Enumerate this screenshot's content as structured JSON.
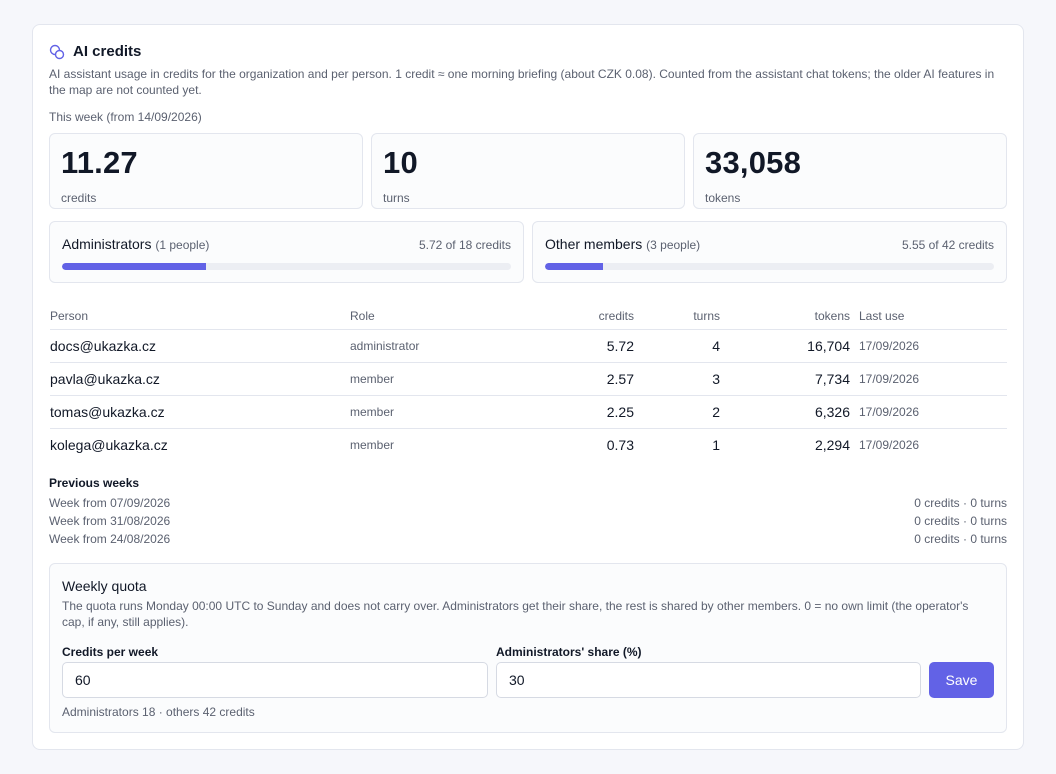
{
  "header": {
    "icon": "coins-icon",
    "title": "AI credits",
    "description": "AI assistant usage in credits for the organization and per person. 1 credit ≈ one morning briefing (about CZK 0.08). Counted from the assistant chat tokens; the older AI features in the map are not counted yet."
  },
  "this_week": {
    "label": "This week (from 14/09/2026)"
  },
  "stats": [
    {
      "value": "11.27",
      "label": "credits"
    },
    {
      "value": "10",
      "label": "turns"
    },
    {
      "value": "33,058",
      "label": "tokens"
    }
  ],
  "groups": [
    {
      "name": "Administrators",
      "count": "(1 people)",
      "usage": "5.72 of 18 credits",
      "fill_percent": 32
    },
    {
      "name": "Other members",
      "count": "(3 people)",
      "usage": "5.55 of 42 credits",
      "fill_percent": 13
    }
  ],
  "table": {
    "columns": {
      "person": "Person",
      "role": "Role",
      "credits": "credits",
      "turns": "turns",
      "tokens": "tokens",
      "last_use": "Last use"
    },
    "rows": [
      {
        "person": "docs@ukazka.cz",
        "role": "administrator",
        "credits": "5.72",
        "turns": "4",
        "tokens": "16,704",
        "last_use": "17/09/2026"
      },
      {
        "person": "pavla@ukazka.cz",
        "role": "member",
        "credits": "2.57",
        "turns": "3",
        "tokens": "7,734",
        "last_use": "17/09/2026"
      },
      {
        "person": "tomas@ukazka.cz",
        "role": "member",
        "credits": "2.25",
        "turns": "2",
        "tokens": "6,326",
        "last_use": "17/09/2026"
      },
      {
        "person": "kolega@ukazka.cz",
        "role": "member",
        "credits": "0.73",
        "turns": "1",
        "tokens": "2,294",
        "last_use": "17/09/2026"
      }
    ]
  },
  "previous_weeks": {
    "title": "Previous weeks",
    "items": [
      {
        "week": "Week from 07/09/2026",
        "summary": "0 credits · 0 turns"
      },
      {
        "week": "Week from 31/08/2026",
        "summary": "0 credits · 0 turns"
      },
      {
        "week": "Week from 24/08/2026",
        "summary": "0 credits · 0 turns"
      }
    ]
  },
  "quota": {
    "title": "Weekly quota",
    "description": "The quota runs Monday 00:00 UTC to Sunday and does not carry over. Administrators get their share, the rest is shared by other members. 0 = no own limit (the operator's cap, if any, still applies).",
    "credits_label": "Credits per week",
    "credits_value": "60",
    "share_label": "Administrators' share (%)",
    "share_value": "30",
    "save_label": "Save",
    "summary": "Administrators 18 · others 42 credits"
  },
  "colors": {
    "accent": "#6262e6",
    "track": "#eceef3",
    "border": "#e3e6ee",
    "muted_text": "#5b6170"
  }
}
